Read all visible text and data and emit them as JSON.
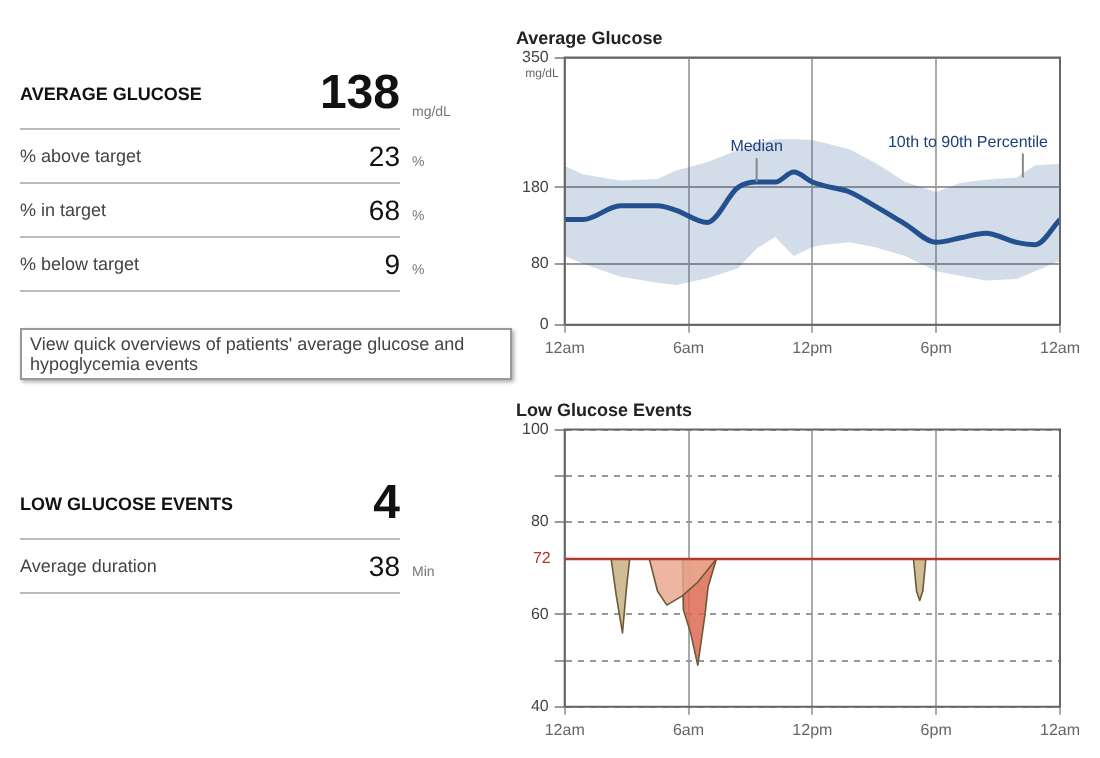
{
  "chart_data": [
    {
      "type": "other",
      "title": "AVERAGE GLUCOSE",
      "subtitle": "View quick overviews of patients' average glucose and hypoglycemia events",
      "categories": [
        null,
        "% above target",
        "% in target",
        "% below target"
      ],
      "values": [
        138,
        23,
        68,
        9
      ],
      "data_labels": true,
      "annotations": [
        "mg/dL",
        "%",
        "%",
        "%"
      ]
    },
    {
      "type": "line",
      "title": "Average Glucose",
      "ylabel": "mg/dL",
      "xlim": [
        "--01-01T00:00",
        "--01-02T00:00"
      ],
      "xticks": [
        {
          "value": "--01-01T00:00",
          "label": "12am"
        },
        {
          "value": "--01-01T06:00",
          "label": "6am"
        },
        {
          "value": "--01-01T12:00",
          "label": "12pm"
        },
        {
          "value": "--01-01T18:00",
          "label": "6pm"
        },
        {
          "value": "--01-02T00:00",
          "label": "12am"
        }
      ],
      "ylim": [
        0,
        350
      ],
      "yticks": [
        0,
        80,
        180,
        350
      ],
      "grid": true,
      "series": [
        {
          "color": "#24518f",
          "x": [
            "--01-01T00:00",
            "--01-01T00:54",
            "--01-01T02:42",
            "--01-01T04:30",
            "--01-01T05:24",
            "--01-01T06:54",
            "--01-01T08:24",
            "--01-01T09:18",
            "--01-01T10:12",
            "--01-01T11:06",
            "--01-01T12:00",
            "--01-01T12:36",
            "--01-01T13:48",
            "--01-01T15:00",
            "--01-01T16:30",
            "--01-01T18:00",
            "--01-01T19:12",
            "--01-01T20:24",
            "--01-01T21:54",
            "--01-01T22:48",
            "--01-02T00:00"
          ],
          "values": [
            138,
            138,
            156,
            156,
            150,
            134,
            180,
            187,
            187,
            200,
            187,
            182,
            174,
            156,
            132,
            108,
            114,
            120,
            108,
            105,
            138
          ],
          "upper": [
            208,
            197,
            189,
            191,
            202,
            213,
            229,
            238,
            243,
            243,
            242,
            238,
            230,
            213,
            187,
            174,
            186,
            190,
            193,
            209,
            211
          ],
          "lower": [
            90,
            80,
            63,
            55,
            52,
            61,
            74,
            100,
            115,
            90,
            102,
            105,
            108,
            102,
            90,
            70,
            64,
            58,
            60,
            70,
            84
          ]
        }
      ],
      "annotations": [
        {
          "text": "Median",
          "x": "--01-01T09:18",
          "y": 187
        },
        {
          "text": "10th to 90th Percentile",
          "x": "--01-01T22:12",
          "y": 193
        }
      ]
    },
    {
      "type": "other",
      "title": "LOW GLUCOSE EVENTS",
      "categories": [
        null,
        "Average duration"
      ],
      "values": [
        4,
        38
      ],
      "data_labels": true,
      "annotations": [
        "Min"
      ]
    },
    {
      "type": "area",
      "title": "Low Glucose Events",
      "xlim": [
        "--01-01T00:00",
        "--01-02T00:00"
      ],
      "xticks": [
        {
          "value": "--01-01T00:00",
          "label": "12am"
        },
        {
          "value": "--01-01T06:00",
          "label": "6am"
        },
        {
          "value": "--01-01T12:00",
          "label": "12pm"
        },
        {
          "value": "--01-01T18:00",
          "label": "6pm"
        },
        {
          "value": "--01-02T00:00",
          "label": "12am"
        }
      ],
      "ylim": [
        40,
        100
      ],
      "yticks": [
        40,
        {
          "value": 50,
          "label": null
        },
        60,
        80,
        {
          "value": 90,
          "label": null
        },
        100
      ],
      "grid": true,
      "ref_lines": [
        {
          "axis": "y",
          "value": 72,
          "label": "72",
          "color": "#b03a2e"
        }
      ],
      "series": [
        {
          "color": "#c8b283",
          "x": [
            "--01-01T02:15",
            "--01-01T02:30",
            "--01-01T02:48",
            "--01-01T03:00",
            "--01-01T03:09"
          ],
          "values": [
            72,
            64,
            56,
            66,
            72
          ]
        },
        {
          "color": "#eaa98f",
          "x": [
            "--01-01T04:06",
            "--01-01T04:30",
            "--01-01T04:57",
            "--01-01T05:42",
            "--01-01T06:27",
            "--01-01T07:21"
          ],
          "values": [
            72,
            65,
            62,
            64,
            67,
            72
          ]
        },
        {
          "color": "#de6a52",
          "x": [
            "--01-01T05:42",
            "--01-01T05:45",
            "--01-01T06:06",
            "--01-01T06:27",
            "--01-01T06:48",
            "--01-01T06:57",
            "--01-01T07:21"
          ],
          "values": [
            72,
            61,
            56,
            49,
            60,
            66,
            72
          ]
        },
        {
          "color": "#c8b283",
          "x": [
            "--01-01T16:54",
            "--01-01T17:03",
            "--01-01T17:12",
            "--01-01T17:21",
            "--01-01T17:30"
          ],
          "values": [
            72,
            65,
            63,
            65,
            72
          ]
        }
      ]
    }
  ]
}
